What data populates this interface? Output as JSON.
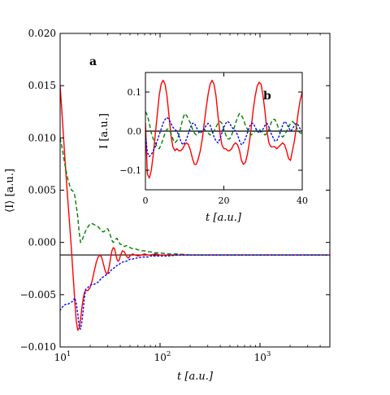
{
  "chart_data": [
    {
      "type": "line",
      "panel_label": "a",
      "xlabel": "t [a.u.]",
      "ylabel": "⟨I⟩ [a.u.]",
      "xscale": "log",
      "xlim": [
        10,
        5000
      ],
      "ylim": [
        -0.01,
        0.02
      ],
      "yticks": [
        -0.01,
        -0.005,
        0.0,
        0.005,
        0.01,
        0.015,
        0.02
      ],
      "ytick_labels": [
        "−0.010",
        "−0.005",
        "0.000",
        "0.005",
        "0.010",
        "0.015",
        "0.020"
      ],
      "xticks": [
        10,
        100,
        1000
      ],
      "xtick_labels": [
        {
          "base": "10",
          "exp": "1"
        },
        {
          "base": "10",
          "exp": "2"
        },
        {
          "base": "10",
          "exp": "3"
        }
      ],
      "grid": false,
      "hline": -0.0012,
      "series": [
        {
          "style": "solid",
          "color": "#ff0000",
          "x": [
            10,
            10.5,
            11,
            11.5,
            12,
            12.5,
            13,
            13.5,
            14,
            14.5,
            15,
            15.5,
            16,
            16.5,
            17,
            17.5,
            18,
            19,
            20,
            21,
            22,
            23,
            24,
            25,
            26,
            27,
            28,
            29,
            30,
            31,
            32,
            33,
            34,
            35,
            36,
            37,
            38,
            39,
            40,
            42,
            44,
            46,
            48,
            50,
            53,
            56,
            60,
            65,
            70,
            75,
            80,
            90,
            100,
            120,
            150,
            200,
            300,
            500,
            1000,
            2000,
            5000
          ],
          "y": [
            0.015,
            0.012,
            0.009,
            0.0062,
            0.0038,
            0.0015,
            -0.0008,
            -0.0032,
            -0.0055,
            -0.0075,
            -0.0084,
            -0.0082,
            -0.0074,
            -0.0063,
            -0.0054,
            -0.0048,
            -0.0046,
            -0.0046,
            -0.0043,
            -0.0036,
            -0.0027,
            -0.0019,
            -0.0014,
            -0.0012,
            -0.0014,
            -0.002,
            -0.0026,
            -0.003,
            -0.0029,
            -0.0023,
            -0.0015,
            -0.0008,
            -0.0005,
            -0.0006,
            -0.0011,
            -0.0016,
            -0.0018,
            -0.0017,
            -0.0013,
            -0.0008,
            -0.0009,
            -0.0013,
            -0.0015,
            -0.0013,
            -0.0011,
            -0.0012,
            -0.0013,
            -0.0012,
            -0.0011,
            -0.0012,
            -0.0012,
            -0.0011,
            -0.0012,
            -0.0012,
            -0.0012,
            -0.0012,
            -0.0012,
            -0.0012,
            -0.0012,
            -0.0012,
            -0.0012
          ]
        },
        {
          "style": "dashed",
          "color": "#008000",
          "x": [
            10,
            10.5,
            11,
            11.5,
            12,
            12.5,
            13,
            13.5,
            14,
            14.5,
            15,
            15.5,
            16,
            16.5,
            17,
            17.5,
            18,
            19,
            20,
            21,
            22,
            23,
            24,
            25,
            26,
            27,
            28,
            29,
            30,
            31,
            32,
            33,
            34,
            35,
            36,
            37,
            38,
            39,
            40,
            42,
            44,
            46,
            48,
            50,
            53,
            56,
            60,
            65,
            70,
            75,
            80,
            90,
            100,
            120,
            150,
            200,
            300,
            500,
            1000,
            2000,
            5000
          ],
          "y": [
            0.01,
            0.009,
            0.0078,
            0.0068,
            0.006,
            0.0054,
            0.005,
            0.0049,
            0.0045,
            0.0035,
            0.0025,
            0.001,
            0.0,
            0.0001,
            0.0005,
            0.0008,
            0.0011,
            0.0015,
            0.0018,
            0.0018,
            0.0017,
            0.0016,
            0.0015,
            0.0013,
            0.0011,
            0.001,
            0.0011,
            0.0013,
            0.0013,
            0.001,
            0.0006,
            0.0002,
            0.0,
            0.0001,
            0.0003,
            0.0004,
            0.0002,
            0.0,
            -0.0002,
            -0.0002,
            -0.0004,
            -0.0003,
            -0.0004,
            -0.0005,
            -0.0006,
            -0.0006,
            -0.0007,
            -0.0008,
            -0.0008,
            -0.0009,
            -0.0009,
            -0.001,
            -0.001,
            -0.0011,
            -0.0011,
            -0.0012,
            -0.0012,
            -0.0012,
            -0.0012,
            -0.0012,
            -0.0012
          ]
        },
        {
          "style": "dotted",
          "color": "#0000ff",
          "x": [
            10,
            10.5,
            11,
            11.5,
            12,
            12.5,
            13,
            13.5,
            14,
            14.5,
            15,
            15.5,
            16,
            16.5,
            17,
            17.5,
            18,
            19,
            20,
            21,
            22,
            23,
            24,
            25,
            26,
            27,
            28,
            29,
            30,
            31,
            32,
            33,
            34,
            35,
            36,
            37,
            38,
            39,
            40,
            42,
            44,
            46,
            48,
            50,
            53,
            56,
            60,
            65,
            70,
            75,
            80,
            90,
            100,
            120,
            150,
            200,
            300,
            500,
            1000,
            2000,
            5000
          ],
          "y": [
            -0.0065,
            -0.0062,
            -0.006,
            -0.0059,
            -0.0059,
            -0.0058,
            -0.0057,
            -0.0056,
            -0.0053,
            -0.0058,
            -0.0068,
            -0.008,
            -0.0083,
            -0.0076,
            -0.0065,
            -0.0053,
            -0.0045,
            -0.0043,
            -0.0041,
            -0.004,
            -0.004,
            -0.0039,
            -0.0038,
            -0.0036,
            -0.0034,
            -0.0033,
            -0.0032,
            -0.0031,
            -0.003,
            -0.0029,
            -0.0027,
            -0.0026,
            -0.0025,
            -0.0024,
            -0.0023,
            -0.0022,
            -0.0022,
            -0.0021,
            -0.002,
            -0.0019,
            -0.0018,
            -0.0018,
            -0.0017,
            -0.0016,
            -0.0016,
            -0.0015,
            -0.0015,
            -0.0014,
            -0.0014,
            -0.0014,
            -0.0013,
            -0.0013,
            -0.0013,
            -0.0013,
            -0.0012,
            -0.0012,
            -0.0012,
            -0.0012,
            -0.0012,
            -0.0012,
            -0.0012
          ]
        }
      ]
    },
    {
      "type": "line",
      "panel_label": "b",
      "xlabel": "t [a.u.]",
      "ylabel": "I [a.u.]",
      "xscale": "linear",
      "xlim": [
        0,
        40
      ],
      "ylim": [
        -0.15,
        0.15
      ],
      "xticks": [
        0,
        20,
        40
      ],
      "xtick_labels": [
        "0",
        "20",
        "40"
      ],
      "yticks": [
        -0.1,
        0.0,
        0.1
      ],
      "ytick_labels": [
        "−0.1",
        "0.0",
        "0.1"
      ],
      "grid": false,
      "hline": 0.0,
      "series": [
        {
          "style": "solid",
          "color": "#ff0000",
          "x": [
            0,
            0.5,
            1,
            1.5,
            2,
            2.5,
            3,
            3.5,
            4,
            4.5,
            5,
            5.5,
            6,
            6.5,
            7,
            7.5,
            8,
            8.5,
            9,
            9.5,
            10,
            10.5,
            11,
            11.5,
            12,
            12.5,
            13,
            13.5,
            14,
            14.5,
            15,
            15.5,
            16,
            16.5,
            17,
            17.5,
            18,
            18.5,
            19,
            19.5,
            20,
            20.5,
            21,
            21.5,
            22,
            22.5,
            23,
            23.5,
            24,
            24.5,
            25,
            25.5,
            26,
            26.5,
            27,
            27.5,
            28,
            28.5,
            29,
            29.5,
            30,
            30.5,
            31,
            31.5,
            32,
            32.5,
            33,
            33.5,
            34,
            34.5,
            35,
            35.5,
            36,
            36.5,
            37,
            37.5,
            38,
            38.5,
            39,
            39.5,
            40
          ],
          "y": [
            0.02,
            -0.11,
            -0.12,
            -0.1,
            -0.06,
            -0.01,
            0.04,
            0.09,
            0.12,
            0.13,
            0.12,
            0.09,
            0.04,
            -0.01,
            -0.04,
            -0.05,
            -0.045,
            -0.05,
            -0.05,
            -0.045,
            -0.035,
            -0.03,
            -0.035,
            -0.05,
            -0.07,
            -0.085,
            -0.085,
            -0.07,
            -0.05,
            -0.02,
            0.02,
            0.06,
            0.095,
            0.12,
            0.13,
            0.12,
            0.09,
            0.04,
            -0.005,
            -0.035,
            -0.045,
            -0.045,
            -0.05,
            -0.05,
            -0.045,
            -0.035,
            -0.03,
            -0.035,
            -0.05,
            -0.075,
            -0.085,
            -0.08,
            -0.06,
            -0.03,
            0.01,
            0.055,
            0.09,
            0.115,
            0.125,
            0.12,
            0.09,
            0.05,
            0.0,
            -0.03,
            -0.04,
            -0.04,
            -0.04,
            -0.045,
            -0.04,
            -0.035,
            -0.03,
            -0.035,
            -0.05,
            -0.07,
            -0.075,
            -0.05,
            -0.025,
            0.01,
            0.05,
            0.08,
            0.1
          ]
        },
        {
          "style": "dashed",
          "color": "#008000",
          "x": [
            0,
            0.5,
            1,
            1.5,
            2,
            2.5,
            3,
            3.5,
            4,
            4.5,
            5,
            5.5,
            6,
            6.5,
            7,
            7.5,
            8,
            8.5,
            9,
            9.5,
            10,
            10.5,
            11,
            11.5,
            12,
            12.5,
            13,
            13.5,
            14,
            14.5,
            15,
            15.5,
            16,
            16.5,
            17,
            17.5,
            18,
            18.5,
            19,
            19.5,
            20,
            20.5,
            21,
            21.5,
            22,
            22.5,
            23,
            23.5,
            24,
            24.5,
            25,
            25.5,
            26,
            26.5,
            27,
            27.5,
            28,
            28.5,
            29,
            29.5,
            30,
            30.5,
            31,
            31.5,
            32,
            32.5,
            33,
            33.5,
            34,
            34.5,
            35,
            35.5,
            36,
            36.5,
            37,
            37.5,
            38,
            38.5,
            39,
            39.5,
            40
          ],
          "y": [
            0.05,
            0.04,
            0.02,
            -0.005,
            -0.02,
            -0.03,
            -0.04,
            -0.045,
            -0.035,
            -0.02,
            -0.005,
            0.005,
            0.005,
            -0.005,
            -0.02,
            -0.03,
            -0.025,
            -0.01,
            0.01,
            0.03,
            0.045,
            0.04,
            0.03,
            0.02,
            0.005,
            -0.005,
            -0.01,
            -0.005,
            0.0,
            0.005,
            0.005,
            0.0,
            -0.005,
            -0.01,
            -0.005,
            0.0,
            0.01,
            0.02,
            0.025,
            0.02,
            0.005,
            -0.01,
            -0.02,
            -0.02,
            -0.01,
            0.005,
            0.02,
            0.035,
            0.045,
            0.04,
            0.03,
            0.015,
            0.005,
            -0.005,
            -0.01,
            -0.005,
            0.0,
            0.005,
            0.005,
            0.0,
            -0.005,
            -0.01,
            -0.005,
            0.005,
            0.02,
            0.03,
            0.03,
            0.02,
            0.005,
            -0.01,
            -0.015,
            -0.01,
            0.0,
            0.01,
            0.02,
            0.025,
            0.02,
            0.01,
            0.0,
            -0.005,
            -0.005
          ]
        },
        {
          "style": "dotted",
          "color": "#0000ff",
          "x": [
            0,
            0.5,
            1,
            1.5,
            2,
            2.5,
            3,
            3.5,
            4,
            4.5,
            5,
            5.5,
            6,
            6.5,
            7,
            7.5,
            8,
            8.5,
            9,
            9.5,
            10,
            10.5,
            11,
            11.5,
            12,
            12.5,
            13,
            13.5,
            14,
            14.5,
            15,
            15.5,
            16,
            16.5,
            17,
            17.5,
            18,
            18.5,
            19,
            19.5,
            20,
            20.5,
            21,
            21.5,
            22,
            22.5,
            23,
            23.5,
            24,
            24.5,
            25,
            25.5,
            26,
            26.5,
            27,
            27.5,
            28,
            28.5,
            29,
            29.5,
            30,
            30.5,
            31,
            31.5,
            32,
            32.5,
            33,
            33.5,
            34,
            34.5,
            35,
            35.5,
            36,
            36.5,
            37,
            37.5,
            38,
            38.5,
            39,
            39.5,
            40
          ],
          "y": [
            -0.01,
            -0.055,
            -0.065,
            -0.06,
            -0.05,
            -0.04,
            -0.025,
            -0.01,
            0.005,
            0.02,
            0.03,
            0.035,
            0.03,
            0.02,
            0.01,
            0.005,
            0.0,
            -0.01,
            -0.025,
            -0.035,
            -0.03,
            -0.02,
            -0.005,
            0.01,
            0.02,
            0.02,
            0.01,
            0.0,
            -0.005,
            0.0,
            0.005,
            0.015,
            0.02,
            0.015,
            0.0,
            -0.015,
            -0.025,
            -0.03,
            -0.02,
            -0.005,
            0.01,
            0.02,
            0.025,
            0.02,
            0.01,
            0.005,
            0.0,
            -0.01,
            -0.025,
            -0.035,
            -0.03,
            -0.02,
            -0.005,
            0.01,
            0.02,
            0.02,
            0.01,
            0.0,
            -0.005,
            0.0,
            0.005,
            0.015,
            0.02,
            0.01,
            -0.005,
            -0.015,
            -0.025,
            -0.025,
            -0.015,
            0.0,
            0.015,
            0.025,
            0.02,
            0.01,
            0.0,
            0.005,
            0.015,
            0.02,
            0.015,
            0.005,
            0.0
          ]
        }
      ]
    }
  ]
}
